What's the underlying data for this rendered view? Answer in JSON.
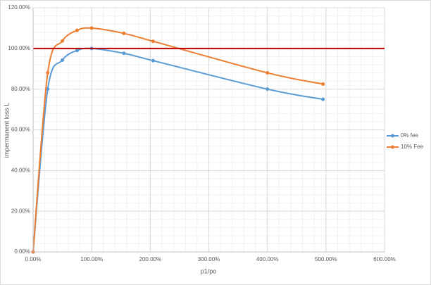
{
  "chart_data": {
    "type": "scatter",
    "x_label": "p1/po",
    "y_label": "impermanent loss L",
    "xlim": [
      0,
      600
    ],
    "ylim": [
      0,
      120
    ],
    "xticks": [
      {
        "value": 0,
        "label": "0.00%"
      },
      {
        "value": 100,
        "label": "100.00%"
      },
      {
        "value": 200,
        "label": "200.00%"
      },
      {
        "value": 300,
        "label": "300.00%"
      },
      {
        "value": 400,
        "label": "400.00%"
      },
      {
        "value": 500,
        "label": "500.00%"
      },
      {
        "value": 600,
        "label": "600.00%"
      }
    ],
    "yticks": [
      {
        "value": 0,
        "label": "0.00%"
      },
      {
        "value": 20,
        "label": "20.00%"
      },
      {
        "value": 40,
        "label": "40.00%"
      },
      {
        "value": 60,
        "label": "60.00%"
      },
      {
        "value": 80,
        "label": "80.00%"
      },
      {
        "value": 100,
        "label": "100.00%"
      },
      {
        "value": 120,
        "label": "120.00%"
      }
    ],
    "grid": true,
    "minor_grid": true,
    "smooth": true,
    "legend": "right",
    "reference_line": {
      "value": 100,
      "color": "#c00000"
    },
    "series": [
      {
        "name": "0% fee",
        "color": "#5b9bd5",
        "x": [
          0,
          25,
          50,
          75,
          100,
          155,
          205,
          400,
          495
        ],
        "values": [
          0,
          80,
          94.3,
          99,
          100,
          97.6,
          94,
          80,
          75
        ]
      },
      {
        "name": "10% Fee",
        "color": "#ed7d31",
        "x": [
          0,
          25,
          50,
          75,
          100,
          155,
          205,
          400,
          495
        ],
        "values": [
          0,
          88,
          103.7,
          108.9,
          110,
          107.4,
          103.5,
          88,
          82.5
        ]
      }
    ]
  }
}
